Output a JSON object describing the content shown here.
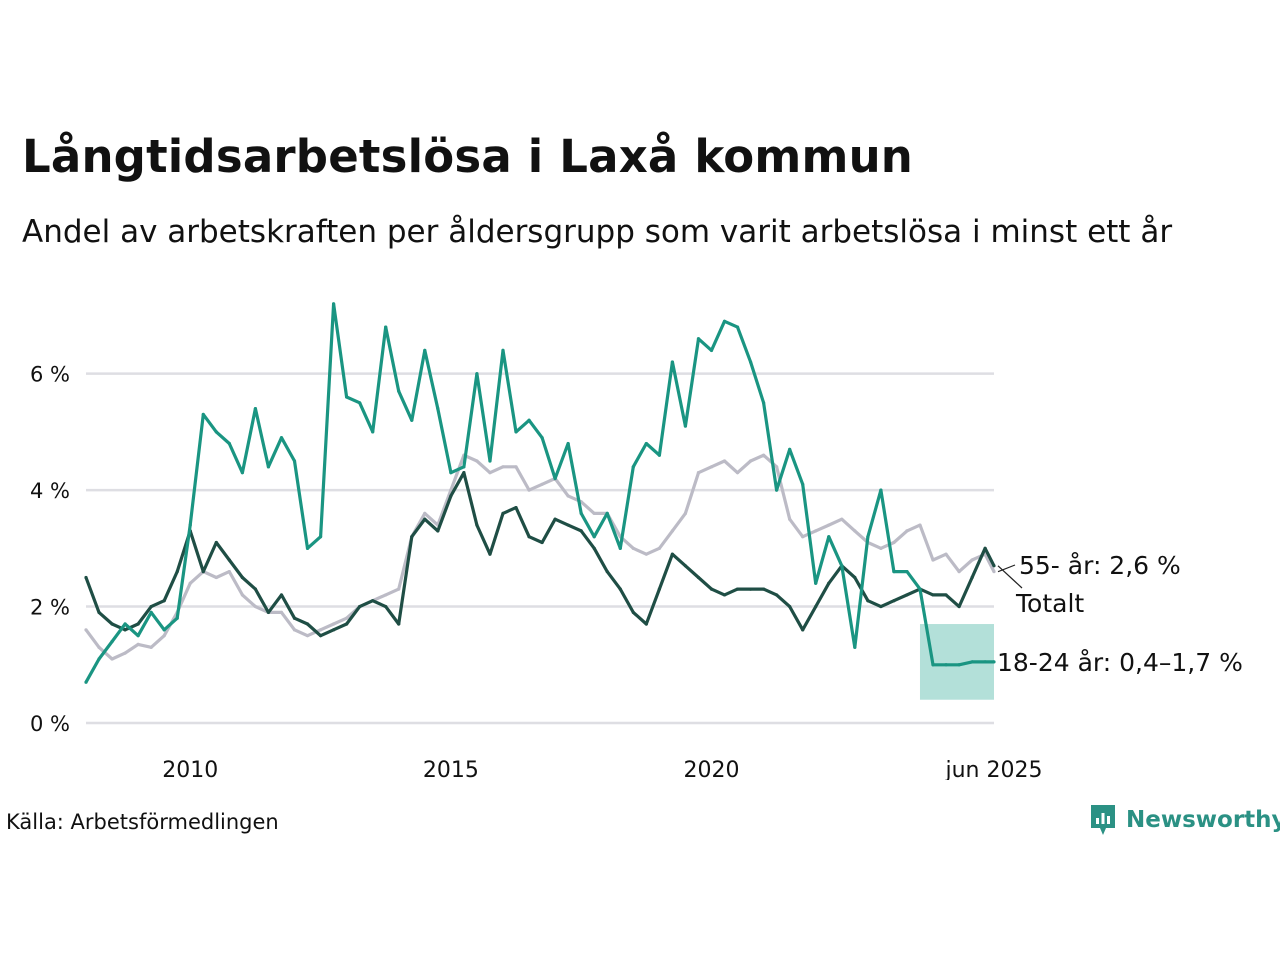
{
  "title": "Långtidsarbetslösa i Laxå kommun",
  "subtitle": "Andel av arbetskraften per åldersgrupp som varit arbetslösa i minst ett år",
  "source": "Källa: Arbetsförmedlingen",
  "brand": "Newsworthy",
  "colors": {
    "young": "#1a9582",
    "total": "#1f4e45",
    "old": "#bcbbc6",
    "band": "#a6dbd2",
    "grid": "#dedee3",
    "brand": "#2b9184"
  },
  "chart_data": {
    "type": "line",
    "title": "Långtidsarbetslösa i Laxå kommun",
    "subtitle": "Andel av arbetskraften per åldersgrupp som varit arbetslösa i minst ett år",
    "xlabel": "",
    "ylabel": "",
    "x_range": [
      2008.0,
      2025.42
    ],
    "ylim": [
      0,
      7.3
    ],
    "y_ticks": [
      0,
      2,
      4,
      6
    ],
    "y_tick_labels": [
      "0 %",
      "2 %",
      "4 %",
      "6 %"
    ],
    "x_ticks": [
      2010,
      2015,
      2020,
      2025.42
    ],
    "x_tick_labels": [
      "2010",
      "2015",
      "2020",
      "jun 2025"
    ],
    "grid": true,
    "series": [
      {
        "name": "55- år",
        "end_label": "55- år: 2,6 %",
        "color": "#bcbbc6",
        "points": [
          [
            2008.0,
            1.6
          ],
          [
            2008.25,
            1.3
          ],
          [
            2008.5,
            1.1
          ],
          [
            2008.75,
            1.2
          ],
          [
            2009.0,
            1.35
          ],
          [
            2009.25,
            1.3
          ],
          [
            2009.5,
            1.5
          ],
          [
            2009.75,
            1.9
          ],
          [
            2010.0,
            2.4
          ],
          [
            2010.25,
            2.6
          ],
          [
            2010.5,
            2.5
          ],
          [
            2010.75,
            2.6
          ],
          [
            2011.0,
            2.2
          ],
          [
            2011.25,
            2.0
          ],
          [
            2011.5,
            1.9
          ],
          [
            2011.75,
            1.9
          ],
          [
            2012.0,
            1.6
          ],
          [
            2012.25,
            1.5
          ],
          [
            2012.5,
            1.6
          ],
          [
            2012.75,
            1.7
          ],
          [
            2013.0,
            1.8
          ],
          [
            2013.25,
            2.0
          ],
          [
            2013.5,
            2.1
          ],
          [
            2013.75,
            2.2
          ],
          [
            2014.0,
            2.3
          ],
          [
            2014.25,
            3.2
          ],
          [
            2014.5,
            3.6
          ],
          [
            2014.75,
            3.4
          ],
          [
            2015.0,
            4.0
          ],
          [
            2015.25,
            4.6
          ],
          [
            2015.5,
            4.5
          ],
          [
            2015.75,
            4.3
          ],
          [
            2016.0,
            4.4
          ],
          [
            2016.25,
            4.4
          ],
          [
            2016.5,
            4.0
          ],
          [
            2016.75,
            4.1
          ],
          [
            2017.0,
            4.2
          ],
          [
            2017.25,
            3.9
          ],
          [
            2017.5,
            3.8
          ],
          [
            2017.75,
            3.6
          ],
          [
            2018.0,
            3.6
          ],
          [
            2018.25,
            3.2
          ],
          [
            2018.5,
            3.0
          ],
          [
            2018.75,
            2.9
          ],
          [
            2019.0,
            3.0
          ],
          [
            2019.25,
            3.3
          ],
          [
            2019.5,
            3.6
          ],
          [
            2019.75,
            4.3
          ],
          [
            2020.0,
            4.4
          ],
          [
            2020.25,
            4.5
          ],
          [
            2020.5,
            4.3
          ],
          [
            2020.75,
            4.5
          ],
          [
            2021.0,
            4.6
          ],
          [
            2021.25,
            4.4
          ],
          [
            2021.5,
            3.5
          ],
          [
            2021.75,
            3.2
          ],
          [
            2022.0,
            3.3
          ],
          [
            2022.25,
            3.4
          ],
          [
            2022.5,
            3.5
          ],
          [
            2022.75,
            3.3
          ],
          [
            2023.0,
            3.1
          ],
          [
            2023.25,
            3.0
          ],
          [
            2023.5,
            3.1
          ],
          [
            2023.75,
            3.3
          ],
          [
            2024.0,
            3.4
          ],
          [
            2024.25,
            2.8
          ],
          [
            2024.5,
            2.9
          ],
          [
            2024.75,
            2.6
          ],
          [
            2025.0,
            2.8
          ],
          [
            2025.25,
            2.9
          ],
          [
            2025.42,
            2.6
          ]
        ]
      },
      {
        "name": "Totalt",
        "end_label": "Totalt",
        "color": "#1f4e45",
        "points": [
          [
            2008.0,
            2.5
          ],
          [
            2008.25,
            1.9
          ],
          [
            2008.5,
            1.7
          ],
          [
            2008.75,
            1.6
          ],
          [
            2009.0,
            1.7
          ],
          [
            2009.25,
            2.0
          ],
          [
            2009.5,
            2.1
          ],
          [
            2009.75,
            2.6
          ],
          [
            2010.0,
            3.3
          ],
          [
            2010.25,
            2.6
          ],
          [
            2010.5,
            3.1
          ],
          [
            2010.75,
            2.8
          ],
          [
            2011.0,
            2.5
          ],
          [
            2011.25,
            2.3
          ],
          [
            2011.5,
            1.9
          ],
          [
            2011.75,
            2.2
          ],
          [
            2012.0,
            1.8
          ],
          [
            2012.25,
            1.7
          ],
          [
            2012.5,
            1.5
          ],
          [
            2012.75,
            1.6
          ],
          [
            2013.0,
            1.7
          ],
          [
            2013.25,
            2.0
          ],
          [
            2013.5,
            2.1
          ],
          [
            2013.75,
            2.0
          ],
          [
            2014.0,
            1.7
          ],
          [
            2014.25,
            3.2
          ],
          [
            2014.5,
            3.5
          ],
          [
            2014.75,
            3.3
          ],
          [
            2015.0,
            3.9
          ],
          [
            2015.25,
            4.3
          ],
          [
            2015.5,
            3.4
          ],
          [
            2015.75,
            2.9
          ],
          [
            2016.0,
            3.6
          ],
          [
            2016.25,
            3.7
          ],
          [
            2016.5,
            3.2
          ],
          [
            2016.75,
            3.1
          ],
          [
            2017.0,
            3.5
          ],
          [
            2017.25,
            3.4
          ],
          [
            2017.5,
            3.3
          ],
          [
            2017.75,
            3.0
          ],
          [
            2018.0,
            2.6
          ],
          [
            2018.25,
            2.3
          ],
          [
            2018.5,
            1.9
          ],
          [
            2018.75,
            1.7
          ],
          [
            2019.0,
            2.3
          ],
          [
            2019.25,
            2.9
          ],
          [
            2019.5,
            2.7
          ],
          [
            2019.75,
            2.5
          ],
          [
            2020.0,
            2.3
          ],
          [
            2020.25,
            2.2
          ],
          [
            2020.5,
            2.3
          ],
          [
            2020.75,
            2.3
          ],
          [
            2021.0,
            2.3
          ],
          [
            2021.25,
            2.2
          ],
          [
            2021.5,
            2.0
          ],
          [
            2021.75,
            1.6
          ],
          [
            2022.0,
            2.0
          ],
          [
            2022.25,
            2.4
          ],
          [
            2022.5,
            2.7
          ],
          [
            2022.75,
            2.5
          ],
          [
            2023.0,
            2.1
          ],
          [
            2023.25,
            2.0
          ],
          [
            2023.5,
            2.1
          ],
          [
            2023.75,
            2.2
          ],
          [
            2024.0,
            2.3
          ],
          [
            2024.25,
            2.2
          ],
          [
            2024.5,
            2.2
          ],
          [
            2024.75,
            2.0
          ],
          [
            2025.0,
            2.5
          ],
          [
            2025.25,
            3.0
          ],
          [
            2025.42,
            2.7
          ]
        ]
      },
      {
        "name": "18-24 år",
        "end_label": "18-24 år: 0,4–1,7 %",
        "color": "#1a9582",
        "points": [
          [
            2008.0,
            0.7
          ],
          [
            2008.25,
            1.1
          ],
          [
            2008.5,
            1.4
          ],
          [
            2008.75,
            1.7
          ],
          [
            2009.0,
            1.5
          ],
          [
            2009.25,
            1.9
          ],
          [
            2009.5,
            1.6
          ],
          [
            2009.75,
            1.8
          ],
          [
            2010.0,
            3.4
          ],
          [
            2010.25,
            5.3
          ],
          [
            2010.5,
            5.0
          ],
          [
            2010.75,
            4.8
          ],
          [
            2011.0,
            4.3
          ],
          [
            2011.25,
            5.4
          ],
          [
            2011.5,
            4.4
          ],
          [
            2011.75,
            4.9
          ],
          [
            2012.0,
            4.5
          ],
          [
            2012.25,
            3.0
          ],
          [
            2012.5,
            3.2
          ],
          [
            2012.75,
            7.2
          ],
          [
            2013.0,
            5.6
          ],
          [
            2013.25,
            5.5
          ],
          [
            2013.5,
            5.0
          ],
          [
            2013.75,
            6.8
          ],
          [
            2014.0,
            5.7
          ],
          [
            2014.25,
            5.2
          ],
          [
            2014.5,
            6.4
          ],
          [
            2014.75,
            5.4
          ],
          [
            2015.0,
            4.3
          ],
          [
            2015.25,
            4.4
          ],
          [
            2015.5,
            6.0
          ],
          [
            2015.75,
            4.5
          ],
          [
            2016.0,
            6.4
          ],
          [
            2016.25,
            5.0
          ],
          [
            2016.5,
            5.2
          ],
          [
            2016.75,
            4.9
          ],
          [
            2017.0,
            4.2
          ],
          [
            2017.25,
            4.8
          ],
          [
            2017.5,
            3.6
          ],
          [
            2017.75,
            3.2
          ],
          [
            2018.0,
            3.6
          ],
          [
            2018.25,
            3.0
          ],
          [
            2018.5,
            4.4
          ],
          [
            2018.75,
            4.8
          ],
          [
            2019.0,
            4.6
          ],
          [
            2019.25,
            6.2
          ],
          [
            2019.5,
            5.1
          ],
          [
            2019.75,
            6.6
          ],
          [
            2020.0,
            6.4
          ],
          [
            2020.25,
            6.9
          ],
          [
            2020.5,
            6.8
          ],
          [
            2020.75,
            6.2
          ],
          [
            2021.0,
            5.5
          ],
          [
            2021.25,
            4.0
          ],
          [
            2021.5,
            4.7
          ],
          [
            2021.75,
            4.1
          ],
          [
            2022.0,
            2.4
          ],
          [
            2022.25,
            3.2
          ],
          [
            2022.5,
            2.7
          ],
          [
            2022.75,
            1.3
          ],
          [
            2023.0,
            3.2
          ],
          [
            2023.25,
            4.0
          ],
          [
            2023.5,
            2.6
          ],
          [
            2023.75,
            2.6
          ],
          [
            2024.0,
            2.3
          ],
          [
            2024.25,
            1.0
          ],
          [
            2024.5,
            1.0
          ],
          [
            2024.75,
            1.0
          ],
          [
            2025.0,
            1.05
          ],
          [
            2025.25,
            1.05
          ],
          [
            2025.42,
            1.05
          ]
        ]
      }
    ],
    "uncertainty_band": {
      "series": "18-24 år",
      "x": [
        2024.0,
        2025.42
      ],
      "low": 0.4,
      "high": 1.7
    }
  }
}
